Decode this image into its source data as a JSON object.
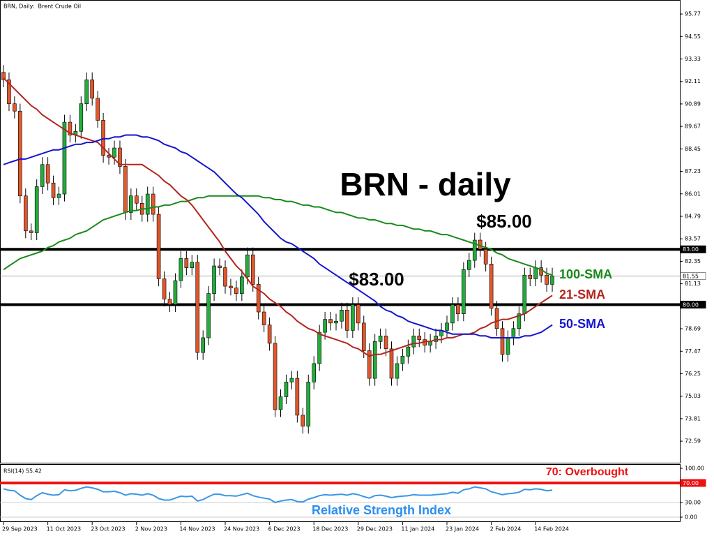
{
  "chart_data": [
    {
      "type": "candlestick",
      "title": "BRN, Daily:  Brent Crude Oil",
      "headline": "BRN - daily",
      "annotations": [
        "$85.00",
        "$83.00"
      ],
      "up_color": "#22ad3c",
      "down_color": "#e2572c",
      "ylim": [
        71.42,
        96.53
      ],
      "yticks": [
        95.77,
        94.55,
        93.33,
        92.11,
        90.89,
        89.67,
        88.45,
        87.23,
        86.01,
        84.79,
        83.57,
        82.35,
        81.13,
        78.69,
        77.47,
        76.25,
        75.03,
        73.81,
        72.59
      ],
      "levels": [
        {
          "value": 83,
          "label": "83.00"
        },
        {
          "value": 80,
          "label": "80.00"
        }
      ],
      "last_price": {
        "value": 81.55,
        "label": "81.55"
      },
      "x_labels": [
        "29 Sep 2023",
        "11 Oct 2023",
        "23 Oct 2023",
        "2 Nov 2023",
        "14 Nov 2023",
        "24 Nov 2023",
        "6 Dec 2023",
        "18 Dec 2023",
        "29 Dec 2023",
        "11 Jan 2024",
        "23 Jan 2024",
        "2 Feb 2024",
        "14 Feb 2024"
      ],
      "ohlc": [
        [
          92.6,
          93.0,
          91.8,
          92.2
        ],
        [
          92.2,
          92.6,
          90.5,
          90.9
        ],
        [
          90.9,
          91.3,
          90.1,
          90.5
        ],
        [
          90.5,
          90.9,
          85.5,
          85.9
        ],
        [
          85.9,
          86.3,
          83.6,
          84.0
        ],
        [
          84.0,
          84.4,
          83.5,
          83.9
        ],
        [
          83.9,
          86.8,
          83.5,
          86.4
        ],
        [
          86.4,
          88.0,
          86.0,
          87.6
        ],
        [
          87.6,
          88.0,
          86.2,
          86.6
        ],
        [
          86.6,
          87.0,
          85.4,
          85.8
        ],
        [
          85.8,
          86.4,
          85.4,
          86.0
        ],
        [
          86.0,
          90.3,
          85.6,
          89.9
        ],
        [
          89.9,
          90.3,
          88.8,
          89.2
        ],
        [
          89.2,
          89.8,
          88.8,
          89.4
        ],
        [
          89.4,
          91.3,
          89.0,
          90.9
        ],
        [
          90.9,
          92.6,
          90.5,
          92.2
        ],
        [
          92.2,
          92.6,
          90.8,
          91.2
        ],
        [
          91.2,
          91.6,
          89.6,
          90.0
        ],
        [
          90.0,
          90.4,
          87.7,
          88.1
        ],
        [
          88.1,
          88.5,
          87.6,
          88.0
        ],
        [
          88.0,
          88.9,
          87.6,
          88.5
        ],
        [
          88.5,
          88.9,
          87.1,
          87.5
        ],
        [
          87.5,
          87.9,
          84.6,
          85.0
        ],
        [
          85.0,
          86.3,
          84.6,
          85.9
        ],
        [
          85.9,
          86.3,
          85.1,
          85.5
        ],
        [
          85.5,
          85.9,
          84.5,
          84.9
        ],
        [
          84.9,
          86.4,
          84.5,
          86.0
        ],
        [
          86.0,
          86.4,
          84.5,
          84.9
        ],
        [
          84.9,
          85.3,
          81.0,
          81.4
        ],
        [
          81.4,
          81.8,
          79.9,
          80.3
        ],
        [
          80.3,
          80.7,
          79.6,
          80.0
        ],
        [
          80.0,
          81.7,
          79.6,
          81.3
        ],
        [
          81.3,
          82.9,
          80.9,
          82.5
        ],
        [
          82.5,
          82.9,
          81.6,
          82.0
        ],
        [
          82.0,
          82.7,
          81.6,
          82.3
        ],
        [
          82.3,
          82.7,
          77.0,
          77.4
        ],
        [
          77.4,
          78.6,
          77.0,
          78.2
        ],
        [
          78.2,
          81.0,
          77.8,
          80.6
        ],
        [
          80.6,
          82.5,
          80.2,
          82.1
        ],
        [
          82.1,
          82.5,
          81.6,
          82.0
        ],
        [
          82.0,
          82.4,
          80.6,
          81.0
        ],
        [
          81.0,
          81.4,
          80.5,
          80.9
        ],
        [
          80.9,
          81.3,
          80.2,
          80.6
        ],
        [
          80.6,
          81.9,
          80.2,
          81.5
        ],
        [
          81.5,
          83.1,
          81.1,
          82.7
        ],
        [
          82.7,
          83.1,
          80.7,
          81.1
        ],
        [
          81.1,
          81.5,
          79.2,
          79.6
        ],
        [
          79.6,
          80.0,
          78.5,
          78.9
        ],
        [
          78.9,
          79.3,
          77.5,
          77.9
        ],
        [
          77.9,
          78.3,
          73.9,
          74.3
        ],
        [
          74.3,
          75.4,
          73.9,
          75.0
        ],
        [
          75.0,
          76.2,
          74.6,
          75.8
        ],
        [
          75.8,
          76.4,
          75.4,
          76.0
        ],
        [
          76.0,
          76.4,
          73.6,
          74.0
        ],
        [
          74.0,
          74.4,
          73.0,
          73.4
        ],
        [
          73.4,
          76.2,
          73.0,
          75.8
        ],
        [
          75.8,
          77.2,
          75.4,
          76.8
        ],
        [
          76.8,
          78.9,
          76.4,
          78.5
        ],
        [
          78.5,
          79.6,
          78.1,
          79.2
        ],
        [
          79.2,
          79.6,
          78.6,
          79.0
        ],
        [
          79.0,
          79.5,
          78.6,
          79.1
        ],
        [
          79.1,
          80.1,
          78.7,
          79.7
        ],
        [
          79.7,
          80.1,
          78.2,
          78.6
        ],
        [
          78.6,
          80.4,
          78.2,
          80.0
        ],
        [
          80.0,
          80.4,
          78.6,
          79.0
        ],
        [
          79.0,
          79.4,
          77.1,
          77.5
        ],
        [
          77.5,
          77.9,
          75.6,
          76.0
        ],
        [
          76.0,
          78.4,
          75.6,
          78.0
        ],
        [
          78.0,
          78.7,
          77.6,
          78.3
        ],
        [
          78.3,
          78.7,
          77.2,
          77.6
        ],
        [
          77.6,
          78.0,
          75.6,
          76.0
        ],
        [
          76.0,
          77.2,
          75.6,
          76.8
        ],
        [
          76.8,
          77.6,
          76.4,
          77.2
        ],
        [
          77.2,
          78.1,
          76.8,
          77.7
        ],
        [
          77.7,
          78.7,
          77.3,
          78.3
        ],
        [
          78.3,
          78.7,
          77.7,
          78.1
        ],
        [
          78.1,
          78.5,
          77.4,
          77.8
        ],
        [
          77.8,
          78.4,
          77.4,
          78.0
        ],
        [
          78.0,
          78.7,
          77.6,
          78.3
        ],
        [
          78.3,
          79.0,
          77.9,
          78.6
        ],
        [
          78.6,
          79.4,
          78.2,
          79.0
        ],
        [
          79.0,
          80.4,
          78.6,
          80.0
        ],
        [
          80.0,
          80.4,
          79.1,
          79.5
        ],
        [
          79.5,
          82.3,
          79.1,
          81.9
        ],
        [
          81.9,
          82.8,
          81.5,
          82.4
        ],
        [
          82.4,
          83.9,
          82.0,
          83.5
        ],
        [
          83.5,
          83.9,
          82.6,
          83.0
        ],
        [
          83.0,
          83.4,
          81.8,
          82.2
        ],
        [
          82.2,
          82.6,
          79.4,
          79.8
        ],
        [
          79.8,
          80.2,
          78.3,
          78.7
        ],
        [
          78.7,
          79.1,
          76.9,
          77.3
        ],
        [
          77.3,
          78.6,
          76.9,
          78.2
        ],
        [
          78.2,
          79.1,
          77.8,
          78.7
        ],
        [
          78.7,
          79.9,
          78.3,
          79.5
        ],
        [
          79.5,
          82.0,
          79.1,
          81.6
        ],
        [
          81.6,
          82.0,
          81.0,
          81.4
        ],
        [
          81.4,
          82.4,
          81.0,
          82.0
        ],
        [
          82.0,
          82.4,
          81.2,
          81.6
        ],
        [
          81.6,
          82.0,
          80.7,
          81.1
        ],
        [
          81.1,
          82.0,
          80.7,
          81.55
        ]
      ],
      "series": [
        {
          "name": "100-SMA",
          "color": "#1a8a1a",
          "values": [
            81.9,
            82.1,
            82.3,
            82.5,
            82.6,
            82.7,
            82.8,
            82.9,
            83.1,
            83.2,
            83.4,
            83.5,
            83.6,
            83.8,
            83.9,
            84.0,
            84.2,
            84.4,
            84.6,
            84.7,
            84.8,
            84.9,
            85.0,
            85.1,
            85.1,
            85.2,
            85.2,
            85.3,
            85.3,
            85.4,
            85.4,
            85.5,
            85.6,
            85.6,
            85.7,
            85.8,
            85.8,
            85.9,
            85.9,
            85.9,
            85.9,
            85.9,
            85.9,
            85.9,
            85.9,
            85.9,
            85.9,
            85.8,
            85.8,
            85.7,
            85.7,
            85.6,
            85.6,
            85.5,
            85.4,
            85.4,
            85.3,
            85.3,
            85.2,
            85.1,
            85.0,
            85.0,
            84.9,
            84.8,
            84.7,
            84.7,
            84.6,
            84.6,
            84.5,
            84.4,
            84.4,
            84.3,
            84.3,
            84.2,
            84.1,
            84.1,
            84.0,
            84.0,
            83.9,
            83.8,
            83.8,
            83.7,
            83.6,
            83.5,
            83.4,
            83.3,
            83.2,
            83.1,
            83.0,
            82.8,
            82.7,
            82.5,
            82.4,
            82.3,
            82.2,
            82.1,
            82.0,
            81.9,
            81.7,
            81.6
          ]
        },
        {
          "name": "21-SMA",
          "color": "#b3261e",
          "values": [
            92.3,
            92.0,
            91.7,
            91.4,
            91.1,
            90.8,
            90.6,
            90.3,
            90.1,
            89.9,
            89.7,
            89.5,
            89.3,
            89.2,
            89.1,
            89.0,
            88.9,
            88.8,
            88.5,
            88.2,
            87.9,
            87.6,
            87.6,
            87.6,
            87.6,
            87.6,
            87.4,
            87.2,
            87.0,
            86.7,
            86.5,
            86.2,
            85.9,
            85.7,
            85.4,
            85.0,
            84.6,
            84.2,
            83.8,
            83.4,
            82.9,
            82.5,
            82.1,
            81.8,
            81.4,
            81.0,
            80.8,
            80.6,
            80.3,
            80.1,
            79.9,
            79.6,
            79.4,
            79.1,
            78.9,
            78.7,
            78.6,
            78.4,
            78.3,
            78.2,
            78.1,
            78.0,
            77.9,
            77.7,
            77.6,
            77.4,
            77.2,
            77.3,
            77.3,
            77.4,
            77.5,
            77.6,
            77.7,
            77.8,
            77.9,
            77.9,
            78.0,
            78.0,
            78.1,
            78.1,
            78.2,
            78.2,
            78.3,
            78.4,
            78.4,
            78.5,
            78.7,
            78.8,
            79.0,
            79.1,
            79.2,
            79.2,
            79.3,
            79.4,
            79.5,
            79.7,
            79.9,
            80.1,
            80.3,
            80.5
          ]
        },
        {
          "name": "50-SMA",
          "color": "#1515d0",
          "values": [
            87.6,
            87.7,
            87.8,
            87.9,
            87.9,
            88.0,
            88.1,
            88.2,
            88.3,
            88.4,
            88.4,
            88.5,
            88.6,
            88.7,
            88.7,
            88.8,
            88.8,
            88.9,
            89.0,
            89.0,
            89.1,
            89.1,
            89.2,
            89.2,
            89.2,
            89.1,
            89.1,
            89.0,
            88.9,
            88.7,
            88.6,
            88.5,
            88.3,
            88.2,
            88.0,
            87.8,
            87.6,
            87.4,
            87.2,
            86.9,
            86.6,
            86.3,
            86.0,
            85.8,
            85.5,
            85.2,
            84.9,
            84.5,
            84.2,
            83.9,
            83.6,
            83.4,
            83.3,
            83.1,
            82.9,
            82.7,
            82.5,
            82.2,
            82.0,
            81.8,
            81.6,
            81.4,
            81.2,
            81.0,
            80.8,
            80.6,
            80.4,
            80.2,
            79.9,
            79.7,
            79.6,
            79.4,
            79.3,
            79.1,
            79.0,
            78.9,
            78.8,
            78.7,
            78.6,
            78.6,
            78.5,
            78.4,
            78.4,
            78.4,
            78.4,
            78.4,
            78.3,
            78.3,
            78.2,
            78.2,
            78.2,
            78.2,
            78.2,
            78.2,
            78.3,
            78.3,
            78.4,
            78.5,
            78.7,
            78.9
          ]
        }
      ]
    },
    {
      "type": "line",
      "title": "RSI(14) 55.42",
      "annotation": "Relative Strength Index",
      "color": "#3a96e6",
      "ylim": [
        -10,
        108.6
      ],
      "yticks": [
        {
          "value": 100,
          "label": "100.00"
        },
        {
          "value": 30,
          "label": "30.00"
        },
        {
          "value": 0,
          "label": "0.00"
        }
      ],
      "overbought": {
        "value": 70,
        "label": "70.00",
        "text": "70: Overbought",
        "color": "#ee1111"
      },
      "values": [
        58,
        55,
        54,
        45,
        38,
        36,
        44,
        50,
        47,
        45,
        46,
        56,
        54,
        55,
        59,
        62,
        60,
        57,
        52,
        52,
        53,
        50,
        45,
        48,
        47,
        45,
        48,
        45,
        38,
        35,
        35,
        39,
        43,
        42,
        43,
        33,
        36,
        42,
        47,
        47,
        44,
        44,
        43,
        46,
        49,
        44,
        41,
        39,
        37,
        30,
        33,
        35,
        36,
        32,
        31,
        37,
        40,
        44,
        46,
        45,
        46,
        47,
        45,
        48,
        46,
        42,
        39,
        44,
        45,
        43,
        40,
        42,
        43,
        44,
        46,
        45,
        45,
        45,
        46,
        47,
        48,
        51,
        49,
        56,
        58,
        62,
        60,
        58,
        52,
        49,
        46,
        48,
        49,
        51,
        57,
        56,
        58,
        57,
        54,
        55.42
      ]
    }
  ]
}
